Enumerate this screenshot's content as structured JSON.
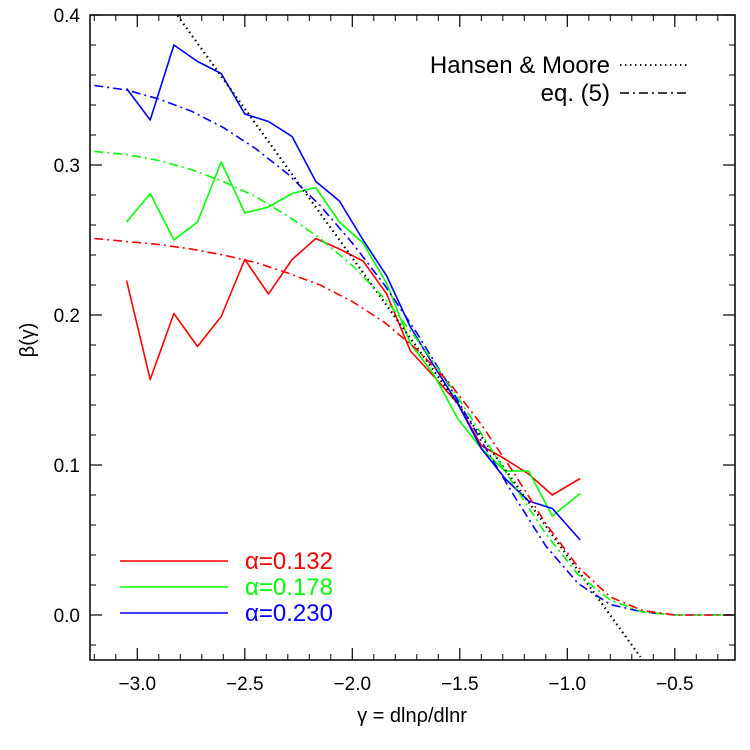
{
  "chart_data": {
    "type": "line",
    "xlabel": "γ = dlnρ/dlnr",
    "ylabel": "β(γ)",
    "xlim": [
      -3.22,
      -0.22
    ],
    "ylim": [
      -0.03,
      0.4
    ],
    "xticks": [
      -3.0,
      -2.5,
      -2.0,
      -1.5,
      -1.0,
      -0.5
    ],
    "xtick_labels": [
      "−3.0",
      "−2.5",
      "−2.0",
      "−1.5",
      "−1.0",
      "−0.5"
    ],
    "yticks": [
      0.0,
      0.1,
      0.2,
      0.3,
      0.4
    ],
    "ytick_labels": [
      "0.0",
      "0.1",
      "0.2",
      "0.3",
      "0.4"
    ],
    "grid": false,
    "series": [
      {
        "name": "α=0.132",
        "color": "#ff0000",
        "style": "solid",
        "x": [
          -3.05,
          -2.94,
          -2.83,
          -2.72,
          -2.61,
          -2.5,
          -2.39,
          -2.28,
          -2.17,
          -2.06,
          -1.95,
          -1.84,
          -1.73,
          -1.62,
          -1.51,
          -1.4,
          -1.29,
          -1.18,
          -1.07,
          -0.94
        ],
        "y": [
          0.223,
          0.157,
          0.201,
          0.179,
          0.199,
          0.237,
          0.214,
          0.237,
          0.251,
          0.244,
          0.236,
          0.214,
          0.176,
          0.159,
          0.141,
          0.113,
          0.104,
          0.094,
          0.08,
          0.091
        ]
      },
      {
        "name": "α=0.178",
        "color": "#00ff00",
        "style": "solid",
        "x": [
          -3.05,
          -2.94,
          -2.83,
          -2.72,
          -2.61,
          -2.5,
          -2.39,
          -2.28,
          -2.17,
          -2.06,
          -1.95,
          -1.84,
          -1.73,
          -1.62,
          -1.51,
          -1.4,
          -1.29,
          -1.18,
          -1.07,
          -0.94
        ],
        "y": [
          0.262,
          0.281,
          0.25,
          0.262,
          0.302,
          0.268,
          0.272,
          0.281,
          0.285,
          0.262,
          0.248,
          0.221,
          0.181,
          0.16,
          0.131,
          0.111,
          0.096,
          0.096,
          0.066,
          0.081
        ]
      },
      {
        "name": "α=0.230",
        "color": "#0000ff",
        "style": "solid",
        "x": [
          -3.05,
          -2.94,
          -2.83,
          -2.72,
          -2.61,
          -2.5,
          -2.39,
          -2.28,
          -2.17,
          -2.06,
          -1.95,
          -1.84,
          -1.73,
          -1.62,
          -1.51,
          -1.4,
          -1.29,
          -1.18,
          -1.07,
          -0.94
        ],
        "y": [
          0.351,
          0.33,
          0.38,
          0.369,
          0.361,
          0.334,
          0.329,
          0.319,
          0.289,
          0.276,
          0.25,
          0.226,
          0.192,
          0.166,
          0.141,
          0.111,
          0.091,
          0.076,
          0.071,
          0.05
        ]
      },
      {
        "name": "Hansen & Moore",
        "color": "#000000",
        "style": "dotted",
        "legend": true,
        "x": [
          -2.84,
          -0.66
        ],
        "y": [
          0.405,
          -0.028
        ]
      },
      {
        "name": "eq. (5)",
        "color": "#0000ff",
        "style": "dashdot",
        "legend": true,
        "x": [
          -3.2,
          -3.05,
          -2.9,
          -2.75,
          -2.6,
          -2.45,
          -2.3,
          -2.15,
          -2.0,
          -1.85,
          -1.7,
          -1.55,
          -1.4,
          -1.25,
          -1.1,
          -0.95,
          -0.8,
          -0.65,
          -0.5,
          -0.35,
          -0.22
        ],
        "y": [
          0.353,
          0.35,
          0.344,
          0.336,
          0.325,
          0.311,
          0.294,
          0.273,
          0.248,
          0.22,
          0.188,
          0.153,
          0.116,
          0.08,
          0.046,
          0.021,
          0.007,
          0.002,
          0.0,
          0.0,
          0.0
        ]
      },
      {
        "name": "",
        "color": "#00ff00",
        "style": "dashdot",
        "x": [
          -3.2,
          -3.05,
          -2.9,
          -2.75,
          -2.6,
          -2.45,
          -2.3,
          -2.15,
          -2.0,
          -1.85,
          -1.7,
          -1.55,
          -1.4,
          -1.25,
          -1.1,
          -0.95,
          -0.8,
          -0.65,
          -0.5,
          -0.35,
          -0.22
        ],
        "y": [
          0.309,
          0.307,
          0.303,
          0.297,
          0.289,
          0.279,
          0.266,
          0.251,
          0.233,
          0.211,
          0.184,
          0.154,
          0.121,
          0.087,
          0.054,
          0.027,
          0.01,
          0.002,
          0.0,
          0.0,
          0.0
        ]
      },
      {
        "name": "",
        "color": "#ff0000",
        "style": "dashdot",
        "x": [
          -3.2,
          -3.05,
          -2.9,
          -2.75,
          -2.6,
          -2.45,
          -2.3,
          -2.15,
          -2.0,
          -1.85,
          -1.7,
          -1.55,
          -1.4,
          -1.25,
          -1.1,
          -0.95,
          -0.8,
          -0.65,
          -0.5,
          -0.35,
          -0.22
        ],
        "y": [
          0.251,
          0.249,
          0.247,
          0.244,
          0.24,
          0.235,
          0.228,
          0.22,
          0.209,
          0.195,
          0.177,
          0.155,
          0.127,
          0.095,
          0.061,
          0.032,
          0.012,
          0.003,
          0.0,
          0.0,
          0.0
        ]
      }
    ]
  }
}
